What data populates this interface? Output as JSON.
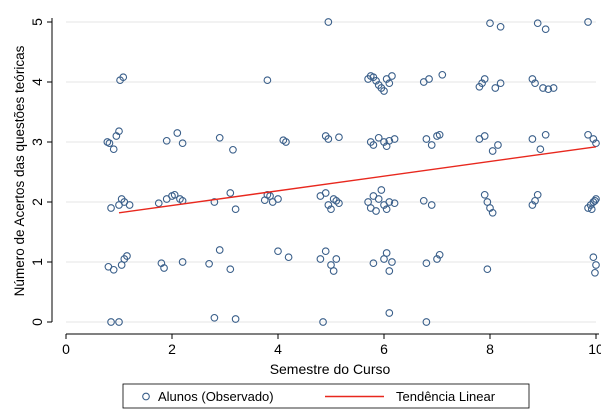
{
  "chart_data": {
    "type": "scatter",
    "xlabel": "Semestre do Curso",
    "ylabel": "Número de Acertos das questões teóricas",
    "xlim": [
      0,
      10
    ],
    "ylim": [
      0,
      5
    ],
    "x_ticks": [
      0,
      2,
      4,
      6,
      8,
      10
    ],
    "y_ticks": [
      0,
      1,
      2,
      3,
      4,
      5
    ],
    "x_tick_labels": [
      "0",
      "2",
      "4",
      "6",
      "8",
      "10"
    ],
    "y_tick_labels": [
      "0",
      "1",
      "2",
      "3",
      "4",
      "5"
    ],
    "grid": "horizontal",
    "legend_position": "bottom",
    "colors": {
      "points": "#3a5f8a",
      "trend": "#e8281e",
      "grid": "#e6e6e6",
      "axis": "#000000"
    },
    "series": [
      {
        "name": "Alunos (Observado)",
        "kind": "scatter",
        "points": [
          [
            0.85,
            0.0
          ],
          [
            1.0,
            0.0
          ],
          [
            0.8,
            0.92
          ],
          [
            0.9,
            0.87
          ],
          [
            1.05,
            0.95
          ],
          [
            1.1,
            1.05
          ],
          [
            1.15,
            1.1
          ],
          [
            0.85,
            1.9
          ],
          [
            1.0,
            1.95
          ],
          [
            1.05,
            2.05
          ],
          [
            1.1,
            2.0
          ],
          [
            1.2,
            1.95
          ],
          [
            0.78,
            3.0
          ],
          [
            0.82,
            2.98
          ],
          [
            0.9,
            2.88
          ],
          [
            0.95,
            3.1
          ],
          [
            1.0,
            3.18
          ],
          [
            1.02,
            4.03
          ],
          [
            1.08,
            4.08
          ],
          [
            1.8,
            0.98
          ],
          [
            1.85,
            0.9
          ],
          [
            2.2,
            1.0
          ],
          [
            1.75,
            1.98
          ],
          [
            1.9,
            2.05
          ],
          [
            2.0,
            2.1
          ],
          [
            2.05,
            2.12
          ],
          [
            2.15,
            2.05
          ],
          [
            2.2,
            2.02
          ],
          [
            1.9,
            3.02
          ],
          [
            2.1,
            3.15
          ],
          [
            2.2,
            2.98
          ],
          [
            2.8,
            0.07
          ],
          [
            3.2,
            0.05
          ],
          [
            2.7,
            0.97
          ],
          [
            2.9,
            1.2
          ],
          [
            3.1,
            0.88
          ],
          [
            2.8,
            2.0
          ],
          [
            3.1,
            2.15
          ],
          [
            3.2,
            1.88
          ],
          [
            2.9,
            3.07
          ],
          [
            3.15,
            2.87
          ],
          [
            3.75,
            2.03
          ],
          [
            3.8,
            2.12
          ],
          [
            3.85,
            2.1
          ],
          [
            3.9,
            2.0
          ],
          [
            4.0,
            2.05
          ],
          [
            3.8,
            4.03
          ],
          [
            4.1,
            3.03
          ],
          [
            4.15,
            3.0
          ],
          [
            4.0,
            1.18
          ],
          [
            4.2,
            1.08
          ],
          [
            4.85,
            0.0
          ],
          [
            4.8,
            1.05
          ],
          [
            4.9,
            1.18
          ],
          [
            5.0,
            0.95
          ],
          [
            5.05,
            0.85
          ],
          [
            5.1,
            1.05
          ],
          [
            4.8,
            2.1
          ],
          [
            4.9,
            2.15
          ],
          [
            4.95,
            1.95
          ],
          [
            5.0,
            1.88
          ],
          [
            5.05,
            2.05
          ],
          [
            5.1,
            2.02
          ],
          [
            5.15,
            1.98
          ],
          [
            4.9,
            3.1
          ],
          [
            4.95,
            3.05
          ],
          [
            5.15,
            3.08
          ],
          [
            4.95,
            5.0
          ],
          [
            5.8,
            0.98
          ],
          [
            6.0,
            1.05
          ],
          [
            6.05,
            1.15
          ],
          [
            6.1,
            0.85
          ],
          [
            6.15,
            1.0
          ],
          [
            6.1,
            0.15
          ],
          [
            6.8,
            0.0
          ],
          [
            5.7,
            2.0
          ],
          [
            5.75,
            1.9
          ],
          [
            5.8,
            2.1
          ],
          [
            5.85,
            1.85
          ],
          [
            5.9,
            2.05
          ],
          [
            5.95,
            2.2
          ],
          [
            6.0,
            1.95
          ],
          [
            6.05,
            1.88
          ],
          [
            6.1,
            2.0
          ],
          [
            6.2,
            1.98
          ],
          [
            5.75,
            3.0
          ],
          [
            5.8,
            2.95
          ],
          [
            5.9,
            3.07
          ],
          [
            6.0,
            3.0
          ],
          [
            6.05,
            2.93
          ],
          [
            6.1,
            3.02
          ],
          [
            6.2,
            3.05
          ],
          [
            5.7,
            4.05
          ],
          [
            5.75,
            4.1
          ],
          [
            5.8,
            4.08
          ],
          [
            5.85,
            4.02
          ],
          [
            5.9,
            3.95
          ],
          [
            5.95,
            3.9
          ],
          [
            6.0,
            3.85
          ],
          [
            6.05,
            4.05
          ],
          [
            6.1,
            3.98
          ],
          [
            6.15,
            4.1
          ],
          [
            6.8,
            0.98
          ],
          [
            7.0,
            1.05
          ],
          [
            7.05,
            1.12
          ],
          [
            6.75,
            2.02
          ],
          [
            6.9,
            1.95
          ],
          [
            6.8,
            3.05
          ],
          [
            6.9,
            2.95
          ],
          [
            7.0,
            3.1
          ],
          [
            7.05,
            3.12
          ],
          [
            6.75,
            4.0
          ],
          [
            6.85,
            4.05
          ],
          [
            7.1,
            4.12
          ],
          [
            7.95,
            0.88
          ],
          [
            7.9,
            2.12
          ],
          [
            7.95,
            2.0
          ],
          [
            8.0,
            1.9
          ],
          [
            8.05,
            1.82
          ],
          [
            7.8,
            3.05
          ],
          [
            7.9,
            3.1
          ],
          [
            8.05,
            2.85
          ],
          [
            8.15,
            2.95
          ],
          [
            7.8,
            3.92
          ],
          [
            7.85,
            3.98
          ],
          [
            7.9,
            4.05
          ],
          [
            8.1,
            3.9
          ],
          [
            8.2,
            3.98
          ],
          [
            8.0,
            4.98
          ],
          [
            8.2,
            4.92
          ],
          [
            8.8,
            1.95
          ],
          [
            8.85,
            2.02
          ],
          [
            8.9,
            2.12
          ],
          [
            8.8,
            3.05
          ],
          [
            8.95,
            2.88
          ],
          [
            9.05,
            3.12
          ],
          [
            8.8,
            4.05
          ],
          [
            8.85,
            3.98
          ],
          [
            9.0,
            3.9
          ],
          [
            9.1,
            3.88
          ],
          [
            9.2,
            3.9
          ],
          [
            8.9,
            4.98
          ],
          [
            9.05,
            4.88
          ],
          [
            9.85,
            1.9
          ],
          [
            9.9,
            1.95
          ],
          [
            9.95,
            2.0
          ],
          [
            10.0,
            2.05
          ],
          [
            9.92,
            1.88
          ],
          [
            9.98,
            2.02
          ],
          [
            9.85,
            3.12
          ],
          [
            9.95,
            3.05
          ],
          [
            10.0,
            2.98
          ],
          [
            9.95,
            1.08
          ],
          [
            10.0,
            0.95
          ],
          [
            9.98,
            0.82
          ],
          [
            9.85,
            5.0
          ]
        ]
      },
      {
        "name": "Tendência Linear",
        "kind": "line",
        "x": [
          1,
          10
        ],
        "y": [
          1.82,
          2.92
        ]
      }
    ]
  }
}
